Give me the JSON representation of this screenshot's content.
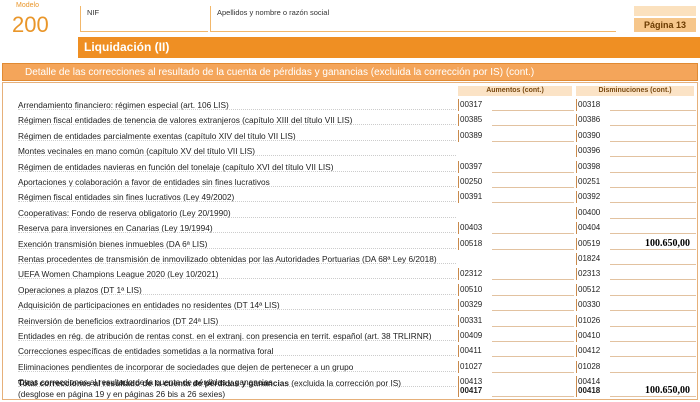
{
  "header": {
    "model_label": "Modelo",
    "model_number": "200",
    "nif_label": "NIF",
    "name_label": "Apellidos y nombre o razón social",
    "page_label": "Página 13"
  },
  "title": "Liquidación (II)",
  "section_title": "Detalle de las correcciones al resultado de la cuenta de pérdidas y ganancias (excluida la corrección por IS) (cont.)",
  "columns": {
    "increases": "Aumentos (cont.)",
    "decreases": "Disminuciones (cont.)"
  },
  "rows": [
    {
      "label": "Arrendamiento financiero: régimen especial (art. 106 LIS)",
      "code_a": "00317",
      "code_d": "00318",
      "value_d": ""
    },
    {
      "label": "Régimen fiscal entidades de tenencia de valores extranjeros (capítulo XIII del título VII LIS)",
      "code_a": "00385",
      "code_d": "00386",
      "value_d": ""
    },
    {
      "label": "Régimen de entidades parcialmente exentas (capítulo XIV del título VII LIS)",
      "code_a": "00389",
      "code_d": "00390",
      "value_d": ""
    },
    {
      "label": "Montes vecinales en mano común (capítulo XV del título VII LIS)",
      "code_a": "",
      "code_d": "00396",
      "value_d": ""
    },
    {
      "label": "Régimen de entidades navieras en función del tonelaje (capítulo XVI del título VII LIS)",
      "code_a": "00397",
      "code_d": "00398",
      "value_d": ""
    },
    {
      "label": "Aportaciones y colaboración a favor de entidades sin fines lucrativos",
      "code_a": "00250",
      "code_d": "00251",
      "value_d": ""
    },
    {
      "label": "Régimen fiscal entidades sin fines lucrativos (Ley 49/2002)",
      "code_a": "00391",
      "code_d": "00392",
      "value_d": ""
    },
    {
      "label": "Cooperativas: Fondo de reserva obligatorio (Ley 20/1990)",
      "code_a": "",
      "code_d": "00400",
      "value_d": ""
    },
    {
      "label": "Reserva para inversiones en Canarias (Ley 19/1994)",
      "code_a": "00403",
      "code_d": "00404",
      "value_d": ""
    },
    {
      "label": "Exención transmisión bienes inmuebles (DA 6ª LIS)",
      "code_a": "00518",
      "code_d": "00519",
      "value_d": "100.650,00"
    },
    {
      "label": "Rentas procedentes de transmisión de inmovilizado obtenidas por las Autoridades Portuarias (DA 68ª Ley 6/2018)",
      "code_a": "",
      "code_d": "01824",
      "value_d": ""
    },
    {
      "label": "UEFA Women Champions League 2020 (Ley 10/2021)",
      "code_a": "02312",
      "code_d": "02313",
      "value_d": ""
    },
    {
      "label": "Operaciones a plazos (DT 1ª LIS)",
      "code_a": "00510",
      "code_d": "00512",
      "value_d": ""
    },
    {
      "label": "Adquisición de participaciones en entidades no residentes (DT 14ª LIS)",
      "code_a": "00329",
      "code_d": "00330",
      "value_d": ""
    },
    {
      "label": "Reinversión de beneficios extraordinarios (DT 24ª LIS)",
      "code_a": "00331",
      "code_d": "01026",
      "value_d": ""
    },
    {
      "label": "Entidades en rég. de atribución de rentas const. en el extranj. con presencia en territ. español (art. 38 TRLIRNR)",
      "code_a": "00409",
      "code_d": "00410",
      "value_d": ""
    },
    {
      "label": "Correcciones específicas de entidades sometidas a la normativa foral",
      "code_a": "00411",
      "code_d": "00412",
      "value_d": ""
    },
    {
      "label": "Eliminaciones pendientes de incorporar de sociedades que dejen de pertenecer a un grupo",
      "code_a": "01027",
      "code_d": "01028",
      "value_d": ""
    },
    {
      "label": "Otras correcciones al resultado de la cuenta de pérdidas y ganancias",
      "code_a": "00413",
      "code_d": "00414",
      "value_d": ""
    }
  ],
  "total": {
    "label_bold": "Total correcciones al resultado de la cuenta de pérdidas y ganancias",
    "label_normal": "(excluida la corrección por IS)",
    "label_line2": "(desglose en página 19  y en páginas 26 bis a 26 sexies)",
    "code_a": "00417",
    "code_d": "00418",
    "value_d": "100.650,00"
  }
}
